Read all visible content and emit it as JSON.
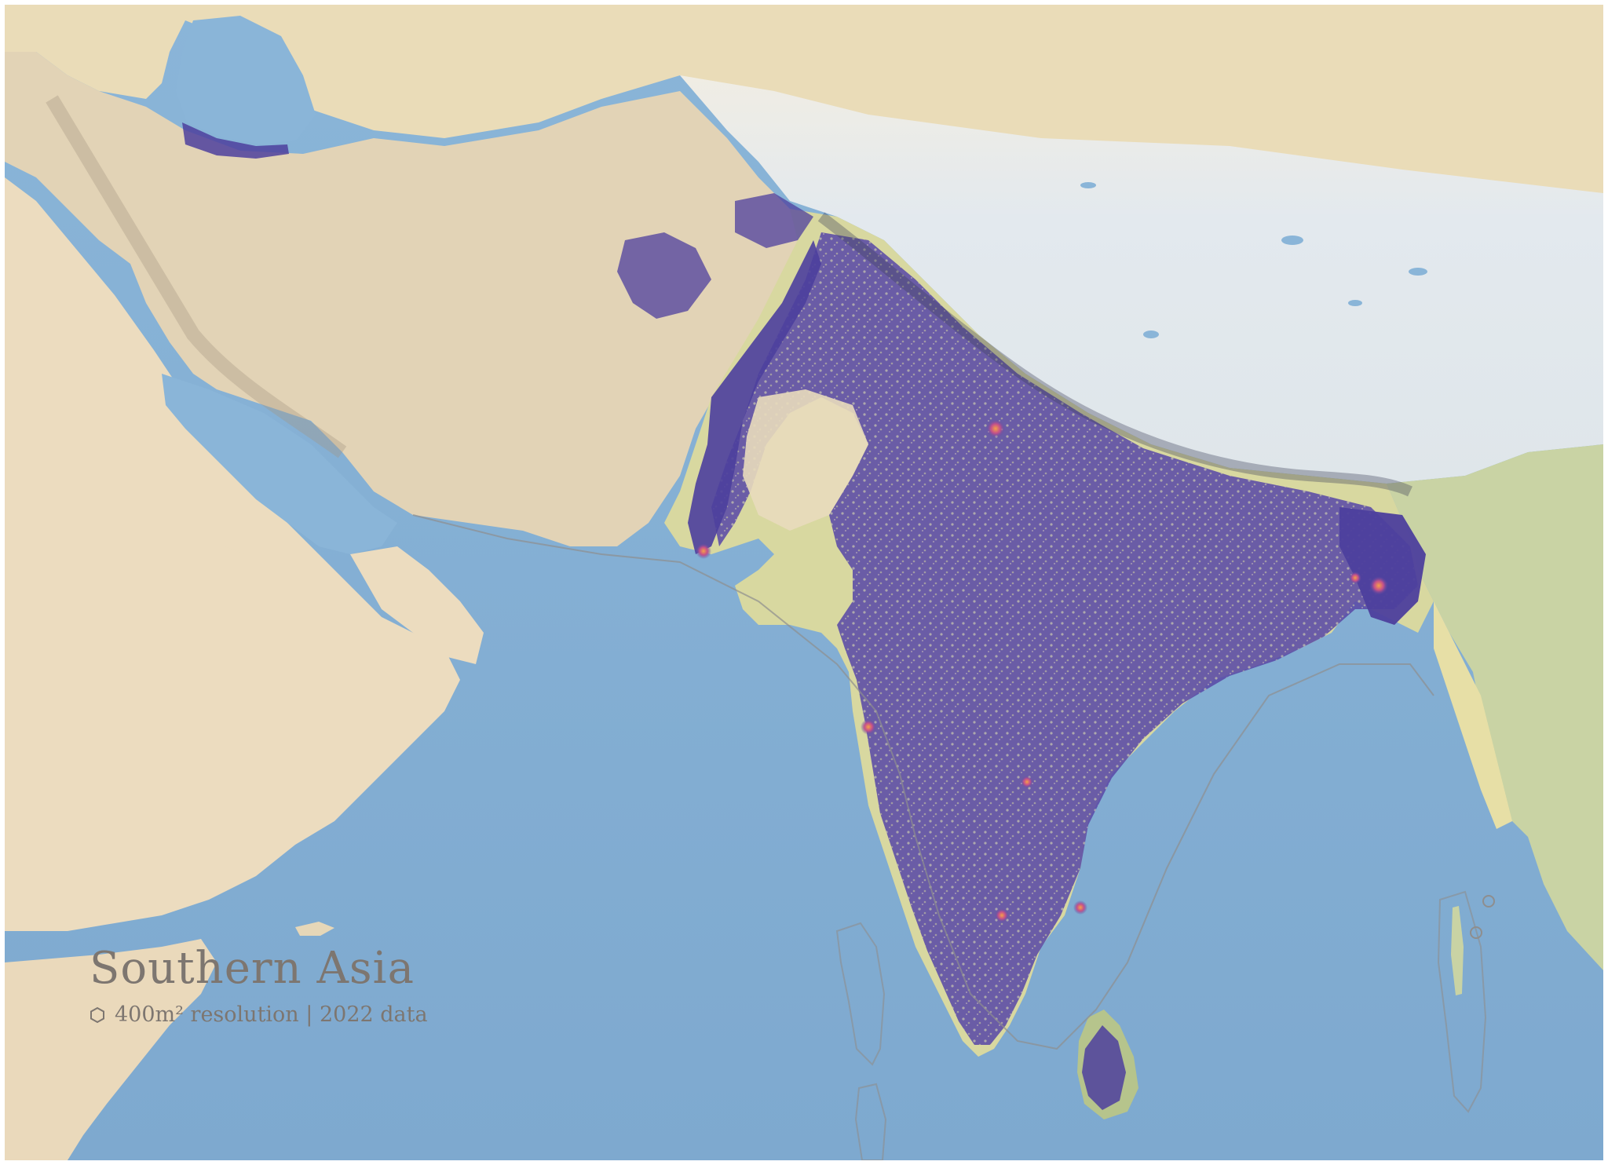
{
  "map": {
    "title": "Southern Asia",
    "subtitle": "400m² resolution | 2022 data",
    "icon": "hexagon-icon",
    "colors": {
      "ocean": "#8fb6d6",
      "ocean_deep": "#86aecf",
      "desert": "#eadcc0",
      "terrain": "#d9cbb0",
      "mountain_snow": "#e9eef1",
      "vegetation": "#c9d7a6",
      "population_low": "#5a4aa6",
      "population_high": "#f08a3c",
      "border": "#8e8e8e",
      "caption_text": "#7d7670"
    }
  }
}
